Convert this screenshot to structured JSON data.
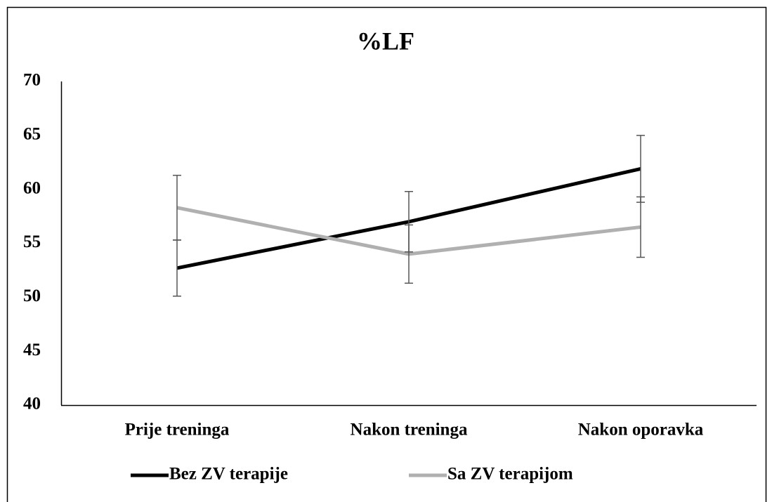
{
  "chart_data": {
    "type": "line",
    "title": "%LF",
    "categories": [
      "Prije treninga",
      "Nakon treninga",
      "Nakon oporavka"
    ],
    "series": [
      {
        "name": "Bez ZV terapije",
        "color": "#000000",
        "values": [
          52.7,
          57.0,
          61.9
        ],
        "errors": [
          2.6,
          2.8,
          3.1
        ]
      },
      {
        "name": "Sa ZV terapijom",
        "color": "#b0b0b0",
        "values": [
          58.3,
          54.0,
          56.5
        ],
        "errors": [
          3.0,
          2.7,
          2.8
        ]
      }
    ],
    "ylim": [
      40,
      70
    ],
    "yticks": [
      40,
      45,
      50,
      55,
      60,
      65,
      70
    ],
    "grid": false,
    "legend": "bottom"
  }
}
